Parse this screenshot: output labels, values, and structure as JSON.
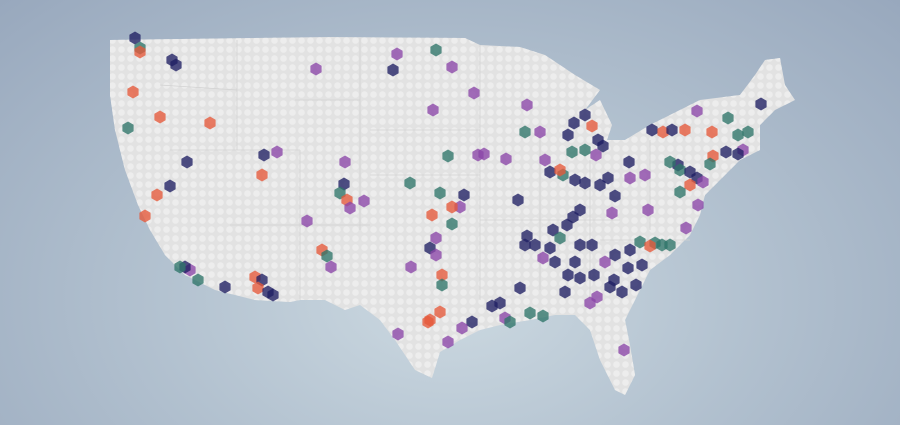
{
  "map": {
    "region": "United States",
    "colors": {
      "background": "#a9b8c9",
      "land": "#e2e2e2",
      "land_dots": "#ececec",
      "state_lines": "#d0d0d0"
    },
    "marker_shape": "hexagon",
    "categories": [
      {
        "key": "n",
        "color": "#1f1f63"
      },
      {
        "key": "p",
        "color": "#8a45a8"
      },
      {
        "key": "t",
        "color": "#2e7469"
      },
      {
        "key": "o",
        "color": "#e5593a"
      }
    ]
  }
}
